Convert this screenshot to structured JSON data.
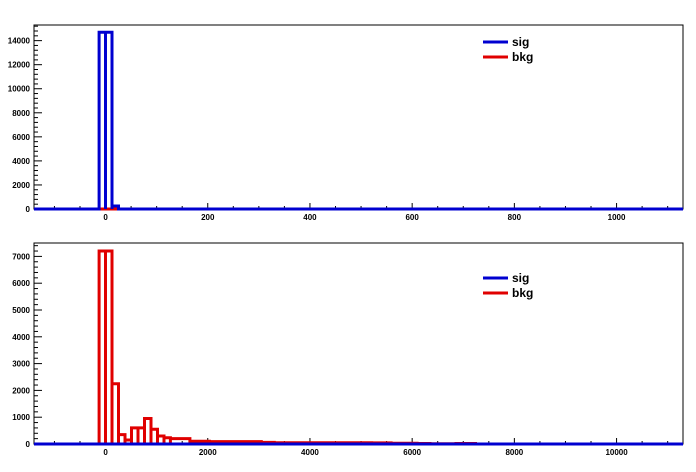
{
  "chart_data": [
    {
      "type": "histogram",
      "xlim": [
        -140,
        1130
      ],
      "ylim": [
        0,
        15300
      ],
      "xticks": [
        0,
        200,
        400,
        600,
        800,
        1000
      ],
      "yticks": [
        0,
        2000,
        4000,
        6000,
        8000,
        10000,
        12000,
        14000
      ],
      "grid": false,
      "legend_position": "top-right",
      "series": [
        {
          "name": "sig",
          "color": "#0000d0",
          "bins": [
            [
              -12.7,
              0,
              14700
            ],
            [
              0,
              12.7,
              14700
            ],
            [
              12.7,
              25.4,
              250
            ]
          ]
        },
        {
          "name": "bkg",
          "color": "#e00000",
          "bins": [
            [
              -12.7,
              0,
              0
            ],
            [
              0,
              12.7,
              0
            ],
            [
              12.7,
              25.4,
              0
            ]
          ]
        }
      ]
    },
    {
      "type": "histogram",
      "xlim": [
        -1400,
        11300
      ],
      "ylim": [
        0,
        7500
      ],
      "xticks": [
        0,
        2000,
        4000,
        6000,
        8000,
        10000
      ],
      "yticks": [
        0,
        1000,
        2000,
        3000,
        4000,
        5000,
        6000,
        7000
      ],
      "grid": false,
      "legend_position": "top-right",
      "series": [
        {
          "name": "sig",
          "color": "#0000d0",
          "bins": []
        },
        {
          "name": "bkg",
          "color": "#e00000",
          "bins": [
            [
              -127,
              0,
              7200
            ],
            [
              0,
              127,
              7200
            ],
            [
              127,
              254,
              2250
            ],
            [
              254,
              381,
              350
            ],
            [
              381,
              508,
              150
            ],
            [
              508,
              635,
              600
            ],
            [
              635,
              762,
              600
            ],
            [
              762,
              889,
              950
            ],
            [
              889,
              1016,
              550
            ],
            [
              1016,
              1143,
              300
            ],
            [
              1143,
              1270,
              230
            ],
            [
              1270,
              1651,
              200
            ],
            [
              1651,
              2032,
              100
            ],
            [
              2032,
              3048,
              90
            ],
            [
              3048,
              3302,
              60
            ],
            [
              3302,
              3556,
              50
            ],
            [
              3556,
              5207,
              45
            ],
            [
              5207,
              5588,
              40
            ],
            [
              5588,
              5842,
              30
            ],
            [
              5842,
              6096,
              25
            ],
            [
              6096,
              6350,
              20
            ],
            [
              6350,
              6858,
              10
            ],
            [
              6858,
              7239,
              20
            ]
          ]
        }
      ]
    }
  ]
}
